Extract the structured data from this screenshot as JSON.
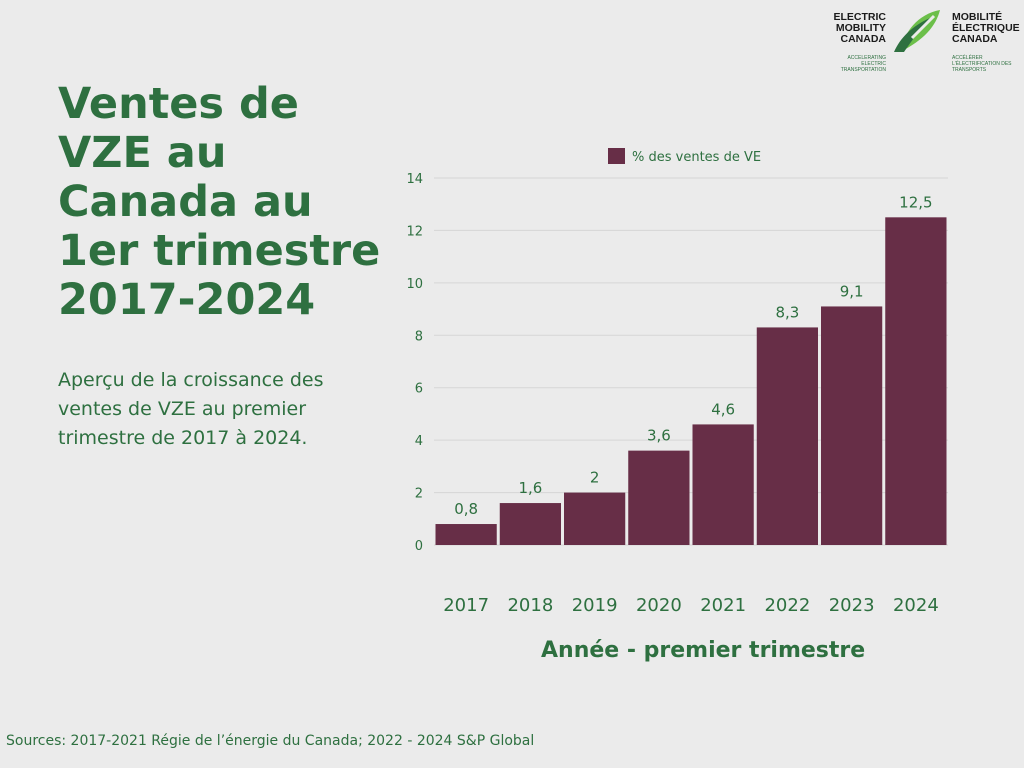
{
  "title": "Ventes de VZE au Canada au 1er trimestre 2017-2024",
  "description": "Aperçu de la croissance des ventes de VZE au premier trimestre de 2017 à 2024.",
  "source": "Sources: 2017-2021 Régie de l’énergie du Canada; 2022 - 2024 S&P Global",
  "logo": {
    "en_lines": [
      "ELECTRIC",
      "MOBILITY",
      "CANADA"
    ],
    "en_tagline": "ACCELERATING ELECTRIC TRANSPORTATION",
    "fr_lines": [
      "MOBILITÉ",
      "ÉLECTRIQUE",
      "CANADA"
    ],
    "fr_tagline": "ACCÉLÉRER L'ÉLECTRIFICATION DES TRANSPORTS"
  },
  "colors": {
    "bar": "#672e47",
    "brand_green": "#2e7040",
    "logo_light_green": "#6cbf4a",
    "background": "#ebebeb"
  },
  "chart_data": {
    "type": "bar",
    "categories": [
      "2017",
      "2018",
      "2019",
      "2020",
      "2021",
      "2022",
      "2023",
      "2024"
    ],
    "series": [
      {
        "name": "% des ventes de VE",
        "values": [
          0.8,
          1.6,
          2,
          3.6,
          4.6,
          8.3,
          9.1,
          12.5
        ]
      }
    ],
    "value_labels": [
      "0,8",
      "1,6",
      "2",
      "3,6",
      "4,6",
      "8,3",
      "9,1",
      "12,5"
    ],
    "xlabel": "Année - premier trimestre",
    "ylabel": "",
    "ylim": [
      0,
      14
    ],
    "yticks": [
      0,
      2,
      4,
      6,
      8,
      10,
      12,
      14
    ],
    "grid": true,
    "legend": "top-center"
  }
}
